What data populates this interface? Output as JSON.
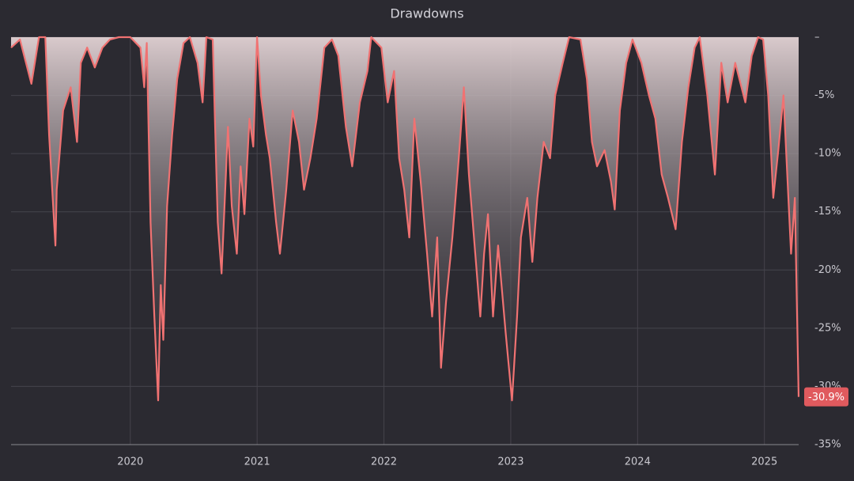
{
  "chart_data": {
    "type": "area",
    "title": "Drawdowns",
    "color": "#f07272",
    "fill_top": "#e2d2d4",
    "x": [
      2019.06,
      2019.13,
      2019.22,
      2019.28,
      2019.33,
      2019.36,
      2019.41,
      2019.42,
      2019.47,
      2019.53,
      2019.58,
      2019.61,
      2019.66,
      2019.72,
      2019.78,
      2019.84,
      2019.91,
      2020.0,
      2020.08,
      2020.11,
      2020.13,
      2020.16,
      2020.19,
      2020.22,
      2020.24,
      2020.26,
      2020.29,
      2020.33,
      2020.37,
      2020.42,
      2020.47,
      2020.53,
      2020.57,
      2020.6,
      2020.65,
      2020.69,
      2020.72,
      2020.77,
      2020.8,
      2020.84,
      2020.87,
      2020.9,
      2020.94,
      2020.97,
      2021.0,
      2021.03,
      2021.07,
      2021.1,
      2021.15,
      2021.18,
      2021.23,
      2021.28,
      2021.33,
      2021.37,
      2021.42,
      2021.47,
      2021.53,
      2021.59,
      2021.64,
      2021.7,
      2021.75,
      2021.81,
      2021.87,
      2021.9,
      2021.98,
      2022.03,
      2022.08,
      2022.12,
      2022.16,
      2022.2,
      2022.24,
      2022.29,
      2022.34,
      2022.38,
      2022.42,
      2022.45,
      2022.49,
      2022.54,
      2022.59,
      2022.63,
      2022.67,
      2022.71,
      2022.76,
      2022.79,
      2022.82,
      2022.86,
      2022.9,
      2022.96,
      2023.01,
      2023.05,
      2023.08,
      2023.13,
      2023.17,
      2023.21,
      2023.26,
      2023.31,
      2023.35,
      2023.41,
      2023.46,
      2023.55,
      2023.6,
      2023.64,
      2023.68,
      2023.74,
      2023.79,
      2023.82,
      2023.86,
      2023.91,
      2023.96,
      2024.03,
      2024.09,
      2024.14,
      2024.19,
      2024.24,
      2024.3,
      2024.35,
      2024.4,
      2024.45,
      2024.49,
      2024.55,
      2024.61,
      2024.66,
      2024.71,
      2024.77,
      2024.85,
      2024.9,
      2024.95,
      2024.99,
      2025.03,
      2025.07,
      2025.11,
      2025.15,
      2025.21,
      2025.24,
      2025.27
    ],
    "values": [
      -0.9,
      -0.2,
      -4,
      0,
      0,
      -8.4,
      -17.9,
      -13.1,
      -6.3,
      -4.3,
      -9,
      -2.2,
      -0.9,
      -2.6,
      -0.9,
      -0.2,
      0,
      0,
      -0.9,
      -4.3,
      -0.5,
      -15.9,
      -24,
      -31.2,
      -21.3,
      -26,
      -14.5,
      -8.4,
      -3.6,
      -0.5,
      0,
      -2.2,
      -5.6,
      0,
      -0.2,
      -15.9,
      -20.3,
      -7.7,
      -14.5,
      -18.6,
      -11.1,
      -15.2,
      -7,
      -9.4,
      0,
      -5,
      -8.4,
      -10.4,
      -15.9,
      -18.6,
      -13.1,
      -6.3,
      -9,
      -13.1,
      -10.4,
      -7,
      -0.9,
      -0.2,
      -1.6,
      -7.7,
      -11.1,
      -5.6,
      -2.9,
      0,
      -0.9,
      -5.6,
      -2.9,
      -10.4,
      -13.1,
      -17.2,
      -7,
      -12.4,
      -18.6,
      -24,
      -17.2,
      -28.4,
      -22.7,
      -17.2,
      -10.4,
      -4.3,
      -11.8,
      -17.2,
      -24,
      -18.6,
      -15.2,
      -24,
      -17.9,
      -25.4,
      -31.2,
      -24,
      -17.2,
      -13.8,
      -19.3,
      -13.8,
      -9,
      -10.4,
      -5,
      -2.2,
      0,
      -0.2,
      -3.6,
      -9,
      -11.1,
      -9.7,
      -12.4,
      -14.8,
      -6.3,
      -2.2,
      -0.2,
      -2.2,
      -5,
      -7,
      -11.8,
      -13.8,
      -16.5,
      -9,
      -4.3,
      -0.9,
      0,
      -5,
      -11.8,
      -2.2,
      -5.6,
      -2.2,
      -5.6,
      -1.6,
      0,
      -0.2,
      -5,
      -13.8,
      -9.7,
      -5,
      -18.6,
      -13.8,
      -30.9
    ],
    "xlim": [
      2019.06,
      2025.27
    ],
    "xticks": [
      2020,
      2021,
      2022,
      2023,
      2024,
      2025
    ],
    "ylim": [
      -35,
      0
    ],
    "yticks": [
      {
        "value": 0,
        "label": "–"
      },
      {
        "value": -5,
        "label": "-5%"
      },
      {
        "value": -10,
        "label": "-10%"
      },
      {
        "value": -15,
        "label": "-15%"
      },
      {
        "value": -20,
        "label": "-20%"
      },
      {
        "value": -25,
        "label": "-25%"
      },
      {
        "value": -30,
        "label": "-30%"
      },
      {
        "value": -35,
        "label": "-35%"
      }
    ],
    "grid": true,
    "annotations": [
      {
        "x": 2025.27,
        "y": -30.9,
        "label": "-30.9%",
        "color": "#e05a5e"
      }
    ]
  }
}
